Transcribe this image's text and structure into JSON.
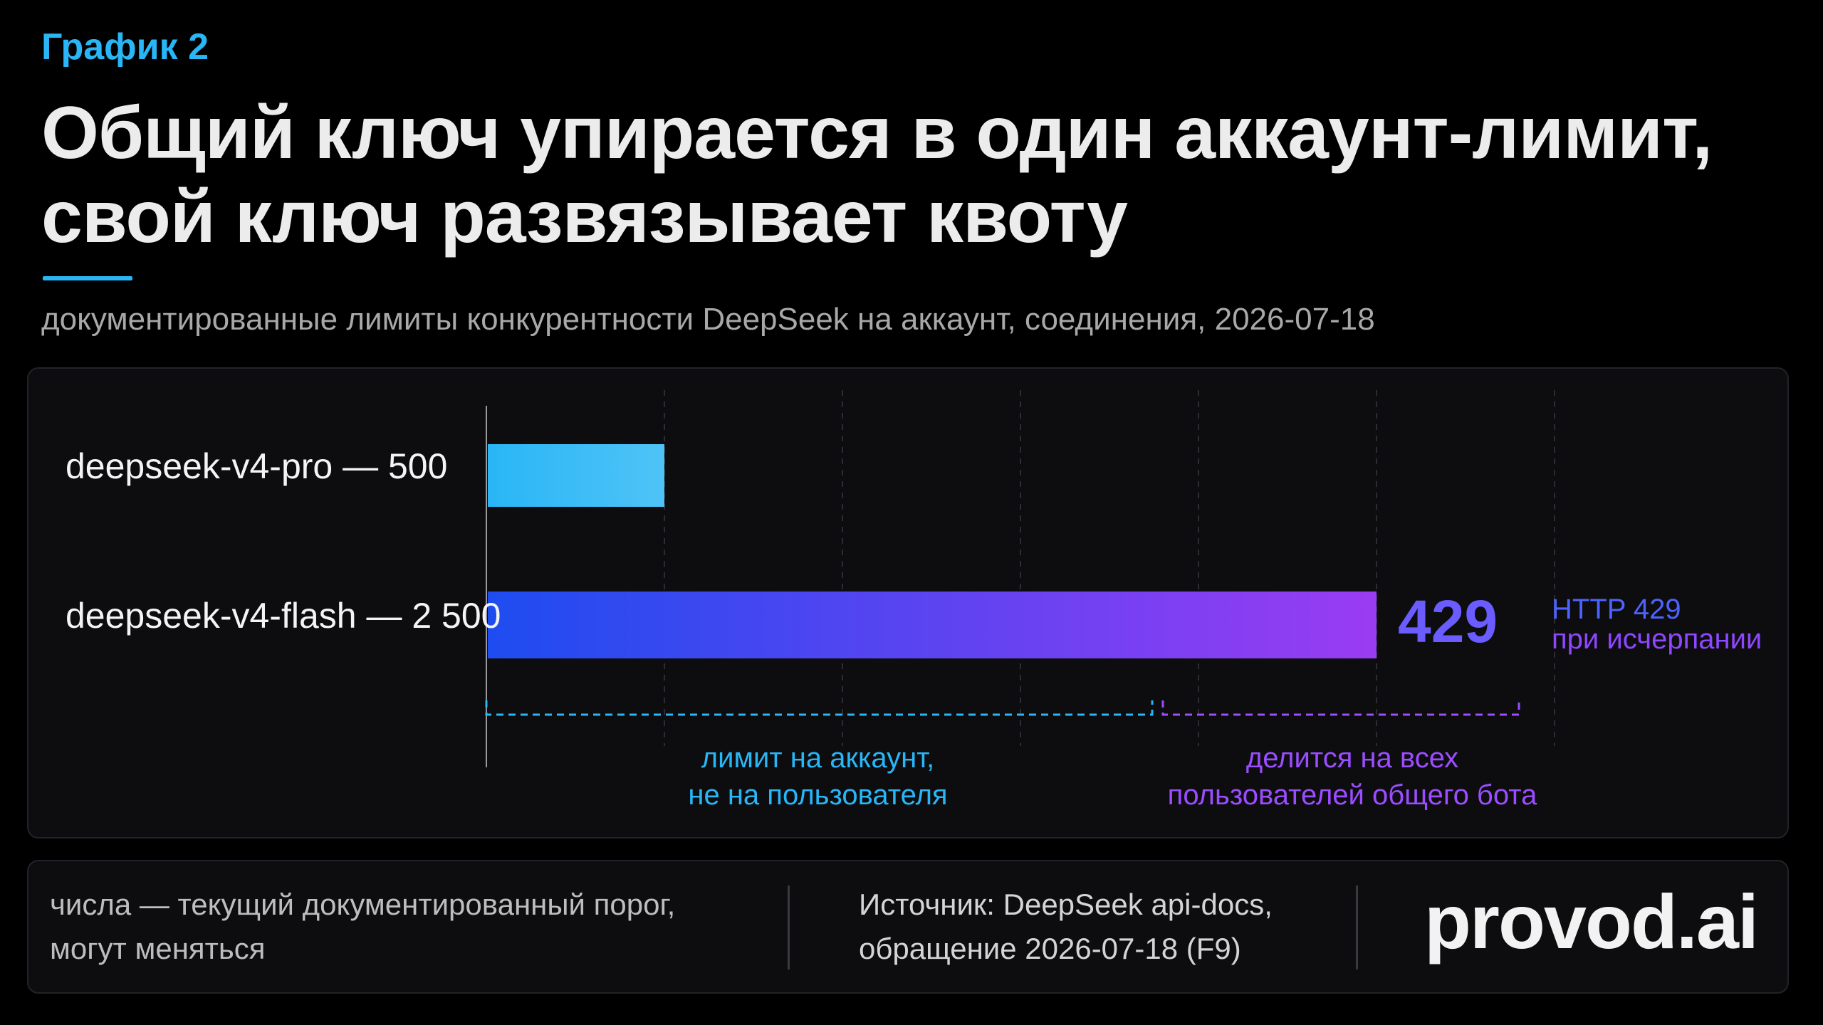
{
  "header": {
    "eyebrow": "График 2",
    "title_line1": "Общий ключ упирается в один аккаунт-лимит,",
    "title_line2": "свой ключ развязывает квоту",
    "subtitle": "документированные лимиты конкурентности DeepSeek на аккаунт, соединения, 2026-07-18",
    "accent_color": "#29b6f6"
  },
  "chart_data": {
    "type": "bar",
    "orientation": "horizontal",
    "categories": [
      "deepseek-v4-pro — 500",
      "deepseek-v4-flash — 2 500"
    ],
    "values": [
      500,
      2500
    ],
    "xlim": [
      0,
      3000
    ],
    "grid": true,
    "bar_colors": [
      [
        "#29b6f6",
        "#4fc3f7"
      ],
      [
        "#1e4cf0",
        "#9a3cf2"
      ]
    ],
    "annotations": {
      "code": "429",
      "code_note_line1": "HTTP 429",
      "code_note_line2": "при исчерпании",
      "bracket_left_line1": "лимит на аккаунт,",
      "bracket_left_line2": "не на пользователя",
      "bracket_right_line1": "делится на всех",
      "bracket_right_line2": "пользователей общего бота",
      "bracket_left_range": [
        0,
        1870
      ],
      "bracket_right_range": [
        1900,
        2900
      ],
      "left_color": "#29b6f6",
      "right_color": "#9b4dff"
    }
  },
  "footer": {
    "note_line1": "числа — текущий документированный порог,",
    "note_line2": "могут меняться",
    "source_line1": "Источник: DeepSeek api-docs,",
    "source_line2": "обращение 2026-07-18 (F9)",
    "brand": "provod.ai"
  }
}
